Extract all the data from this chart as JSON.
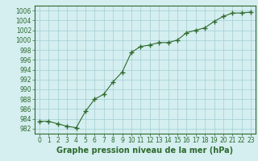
{
  "x": [
    0,
    1,
    2,
    3,
    4,
    5,
    6,
    7,
    8,
    9,
    10,
    11,
    12,
    13,
    14,
    15,
    16,
    17,
    18,
    19,
    20,
    21,
    22,
    23
  ],
  "y": [
    983.5,
    983.5,
    983.0,
    982.5,
    982.2,
    985.5,
    988.0,
    989.0,
    991.5,
    993.5,
    997.5,
    998.7,
    999.0,
    999.5,
    999.5,
    1000.0,
    1001.5,
    1002.0,
    1002.5,
    1003.8,
    1004.8,
    1005.5,
    1005.5,
    1005.7
  ],
  "line_color": "#2d6a2d",
  "marker": "+",
  "marker_size": 4,
  "bg_color": "#d5eef0",
  "grid_color": "#a0cfd4",
  "ylabel_ticks": [
    982,
    984,
    986,
    988,
    990,
    992,
    994,
    996,
    998,
    1000,
    1002,
    1004,
    1006
  ],
  "xlabel": "Graphe pression niveau de la mer (hPa)",
  "ylim": [
    981,
    1007
  ],
  "xlim": [
    -0.5,
    23.5
  ],
  "xlabel_fontsize": 7,
  "tick_fontsize": 5.5,
  "lw": 0.8
}
